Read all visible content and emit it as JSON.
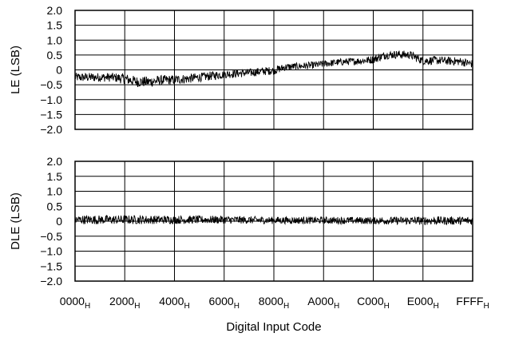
{
  "chart_data": [
    {
      "type": "line",
      "ylabel": "LE (LSB)",
      "ylim": [
        -2.0,
        2.0
      ],
      "yticks": [
        "2.0",
        "1.5",
        "1.0",
        "0.5",
        "0",
        "−0.5",
        "−1.0",
        "−1.5",
        "−2.0"
      ],
      "xlim": [
        0,
        65535
      ],
      "grid": true,
      "series": [
        {
          "color": "#000000",
          "x": [
            0,
            2048,
            4096,
            6144,
            8192,
            10240,
            12288,
            14336,
            16384,
            18432,
            20480,
            22528,
            24576,
            26624,
            28672,
            30720,
            32768,
            34816,
            36864,
            38912,
            40960,
            43008,
            45056,
            47104,
            49152,
            51200,
            53248,
            55296,
            57344,
            59392,
            61440,
            63488,
            65535
          ],
          "center": [
            -0.25,
            -0.25,
            -0.25,
            -0.25,
            -0.3,
            -0.4,
            -0.4,
            -0.35,
            -0.33,
            -0.3,
            -0.25,
            -0.2,
            -0.15,
            -0.12,
            -0.1,
            -0.05,
            -0.02,
            0.1,
            0.12,
            0.15,
            0.2,
            0.25,
            0.28,
            0.3,
            0.35,
            0.5,
            0.52,
            0.5,
            0.3,
            0.32,
            0.3,
            0.28,
            0.2
          ],
          "band": [
            0.15,
            0.15,
            0.15,
            0.15,
            0.18,
            0.18,
            0.18,
            0.17,
            0.16,
            0.16,
            0.15,
            0.15,
            0.14,
            0.14,
            0.14,
            0.14,
            0.14,
            0.12,
            0.12,
            0.12,
            0.12,
            0.12,
            0.12,
            0.12,
            0.14,
            0.14,
            0.14,
            0.14,
            0.14,
            0.14,
            0.14,
            0.14,
            0.14
          ]
        }
      ]
    },
    {
      "type": "line",
      "ylabel": "DLE (LSB)",
      "xlabel": "Digital Input Code",
      "ylim": [
        -2.0,
        2.0
      ],
      "yticks": [
        "2.0",
        "1.5",
        "1.0",
        "0.5",
        "0",
        "−0.5",
        "−1.0",
        "−1.5",
        "−2.0"
      ],
      "xlim": [
        0,
        65535
      ],
      "xticks": [
        "0000",
        "2000",
        "4000",
        "6000",
        "8000",
        "A000",
        "C000",
        "E000",
        "FFFF"
      ],
      "xtick_subscript": "H",
      "grid": true,
      "series": [
        {
          "color": "#000000",
          "x": [
            0,
            8192,
            16384,
            24576,
            32768,
            40960,
            49152,
            57344,
            65535
          ],
          "center": [
            0.05,
            0.05,
            0.05,
            0.05,
            0.03,
            0.03,
            0.02,
            0.02,
            0.02
          ],
          "band": [
            0.15,
            0.15,
            0.14,
            0.13,
            0.12,
            0.12,
            0.12,
            0.14,
            0.14
          ]
        }
      ]
    }
  ]
}
